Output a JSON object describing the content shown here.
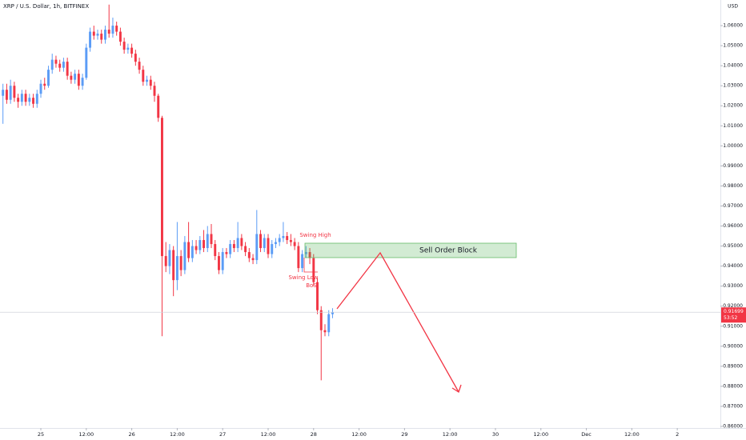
{
  "chart_data": {
    "type": "candlestick",
    "title": "XRP / U.S. Dollar, 1h, BITFINEX",
    "currency": "USD",
    "up_color": "#5b9cf6",
    "down_color": "#f23645",
    "x": [
      -10,
      -9,
      -8,
      -7,
      -6,
      -5,
      -4,
      -3,
      -2,
      -1,
      0,
      1,
      2,
      3,
      4,
      5,
      6,
      7,
      8,
      9,
      10,
      11,
      12,
      13,
      14,
      15,
      16,
      17,
      18,
      19,
      20,
      21,
      22,
      23,
      24,
      25,
      26,
      27,
      28,
      29,
      30,
      31,
      32,
      33,
      34,
      35,
      36,
      37,
      38,
      39,
      40,
      41,
      42,
      43,
      44,
      45,
      46,
      47,
      48,
      49,
      50,
      51,
      52,
      53,
      54,
      55,
      56,
      57,
      58,
      59,
      60,
      61,
      62,
      63,
      64,
      65,
      66,
      67,
      68,
      69,
      70,
      71,
      72,
      73,
      74,
      75,
      76,
      77
    ],
    "open": [
      1.025,
      1.028,
      1.023,
      1.03,
      1.024,
      1.022,
      1.026,
      1.022,
      1.024,
      1.021,
      1.026,
      1.031,
      1.03,
      1.038,
      1.043,
      1.041,
      1.039,
      1.042,
      1.035,
      1.033,
      1.036,
      1.03,
      1.034,
      1.049,
      1.057,
      1.055,
      1.056,
      1.053,
      1.058,
      1.056,
      1.06,
      1.057,
      1.052,
      1.048,
      1.049,
      1.046,
      1.042,
      1.038,
      1.032,
      1.033,
      1.03,
      1.025,
      1.014,
      0.945,
      0.94,
      0.948,
      0.933,
      0.945,
      0.938,
      0.952,
      0.944,
      0.95,
      0.948,
      0.953,
      0.949,
      0.956,
      0.951,
      0.945,
      0.938,
      0.947,
      0.946,
      0.951,
      0.949,
      0.954,
      0.95,
      0.947,
      0.944,
      0.943,
      0.956,
      0.949,
      0.954,
      0.946,
      0.951,
      0.952,
      0.954,
      0.955,
      0.953,
      0.952,
      0.95,
      0.939,
      0.946,
      0.947,
      0.944,
      0.932,
      0.918,
      0.908,
      0.907,
      0.916
    ],
    "high": [
      1.031,
      1.031,
      1.033,
      1.032,
      1.026,
      1.028,
      1.028,
      1.026,
      1.026,
      1.028,
      1.033,
      1.034,
      1.04,
      1.046,
      1.045,
      1.043,
      1.044,
      1.044,
      1.037,
      1.038,
      1.038,
      1.036,
      1.051,
      1.059,
      1.06,
      1.058,
      1.058,
      1.06,
      1.0705,
      1.064,
      1.062,
      1.059,
      1.054,
      1.051,
      1.051,
      1.048,
      1.044,
      1.04,
      1.035,
      1.035,
      1.032,
      1.026,
      1.015,
      0.952,
      0.951,
      0.95,
      0.962,
      0.948,
      0.955,
      0.962,
      0.953,
      0.953,
      0.955,
      0.958,
      0.96,
      0.961,
      0.953,
      0.947,
      0.949,
      0.949,
      0.953,
      0.953,
      0.962,
      0.956,
      0.952,
      0.949,
      0.946,
      0.968,
      0.958,
      0.956,
      0.956,
      0.953,
      0.954,
      0.956,
      0.962,
      0.957,
      0.956,
      0.954,
      0.952,
      0.948,
      0.95,
      0.949,
      0.946,
      0.934,
      0.92,
      0.911,
      0.918,
      0.919
    ],
    "low": [
      1.011,
      1.021,
      1.021,
      1.022,
      1.019,
      1.02,
      1.02,
      1.02,
      1.019,
      1.019,
      1.024,
      1.028,
      1.029,
      1.036,
      1.039,
      1.037,
      1.037,
      1.033,
      1.031,
      1.031,
      1.028,
      1.028,
      1.033,
      1.047,
      1.053,
      1.053,
      1.051,
      1.051,
      1.054,
      1.054,
      1.055,
      1.05,
      1.046,
      1.046,
      1.044,
      1.04,
      1.036,
      1.03,
      1.03,
      1.028,
      1.022,
      1.012,
      0.905,
      0.937,
      0.936,
      0.925,
      0.928,
      0.935,
      0.936,
      0.942,
      0.942,
      0.946,
      0.946,
      0.947,
      0.947,
      0.949,
      0.943,
      0.936,
      0.936,
      0.944,
      0.944,
      0.947,
      0.947,
      0.948,
      0.945,
      0.942,
      0.941,
      0.941,
      0.947,
      0.947,
      0.944,
      0.944,
      0.949,
      0.95,
      0.952,
      0.951,
      0.95,
      0.948,
      0.937,
      0.937,
      0.944,
      0.941,
      0.93,
      0.916,
      0.883,
      0.905,
      0.905,
      0.914
    ],
    "close": [
      1.028,
      1.023,
      1.03,
      1.024,
      1.022,
      1.026,
      1.022,
      1.024,
      1.021,
      1.026,
      1.031,
      1.03,
      1.038,
      1.043,
      1.041,
      1.039,
      1.042,
      1.035,
      1.033,
      1.036,
      1.03,
      1.034,
      1.049,
      1.057,
      1.055,
      1.056,
      1.053,
      1.058,
      1.056,
      1.06,
      1.057,
      1.052,
      1.048,
      1.049,
      1.046,
      1.042,
      1.038,
      1.032,
      1.033,
      1.03,
      1.025,
      1.014,
      0.945,
      0.94,
      0.948,
      0.933,
      0.945,
      0.938,
      0.952,
      0.944,
      0.95,
      0.948,
      0.953,
      0.949,
      0.956,
      0.951,
      0.945,
      0.938,
      0.947,
      0.946,
      0.951,
      0.949,
      0.954,
      0.95,
      0.947,
      0.944,
      0.943,
      0.956,
      0.949,
      0.954,
      0.946,
      0.951,
      0.952,
      0.954,
      0.955,
      0.953,
      0.952,
      0.95,
      0.939,
      0.946,
      0.947,
      0.944,
      0.932,
      0.918,
      0.908,
      0.907,
      0.916,
      0.91699
    ],
    "last_price": 0.91699,
    "countdown": "53:52",
    "xlim": [
      -10.78,
      179.38
    ],
    "ylim": [
      0.8592,
      1.0728
    ],
    "xticks": [
      {
        "value": 0,
        "label": "25"
      },
      {
        "value": 12,
        "label": "12:00"
      },
      {
        "value": 24,
        "label": "26"
      },
      {
        "value": 36,
        "label": "12:00"
      },
      {
        "value": 48,
        "label": "27"
      },
      {
        "value": 60,
        "label": "12:00"
      },
      {
        "value": 72,
        "label": "28"
      },
      {
        "value": 84,
        "label": "12:00"
      },
      {
        "value": 96,
        "label": "29"
      },
      {
        "value": 108,
        "label": "12:00"
      },
      {
        "value": 120,
        "label": "30"
      },
      {
        "value": 132,
        "label": "12:00"
      },
      {
        "value": 144,
        "label": "Dec"
      },
      {
        "value": 156,
        "label": "12:00"
      },
      {
        "value": 168,
        "label": "2"
      }
    ],
    "yticks": [
      {
        "value": 0.86,
        "label": "0.86000"
      },
      {
        "value": 0.87,
        "label": "0.87000"
      },
      {
        "value": 0.88,
        "label": "0.88000"
      },
      {
        "value": 0.89,
        "label": "0.89000"
      },
      {
        "value": 0.9,
        "label": "0.90000"
      },
      {
        "value": 0.91,
        "label": "0.91000"
      },
      {
        "value": 0.92,
        "label": "0.92000"
      },
      {
        "value": 0.93,
        "label": "0.93000"
      },
      {
        "value": 0.94,
        "label": "0.94000"
      },
      {
        "value": 0.95,
        "label": "0.95000"
      },
      {
        "value": 0.96,
        "label": "0.96000"
      },
      {
        "value": 0.97,
        "label": "0.97000"
      },
      {
        "value": 0.98,
        "label": "0.98000"
      },
      {
        "value": 0.99,
        "label": "0.99000"
      },
      {
        "value": 1.0,
        "label": "1.00000"
      },
      {
        "value": 1.01,
        "label": "1.01000"
      },
      {
        "value": 1.02,
        "label": "1.02000"
      },
      {
        "value": 1.03,
        "label": "1.03000"
      },
      {
        "value": 1.04,
        "label": "1.04000"
      },
      {
        "value": 1.05,
        "label": "1.05000"
      },
      {
        "value": 1.06,
        "label": "1.06000"
      }
    ],
    "annotations": {
      "swing_high": "Swing High",
      "swing_low": "Swing Low",
      "bos": "BoS",
      "zone": "Sell Order Block"
    }
  }
}
